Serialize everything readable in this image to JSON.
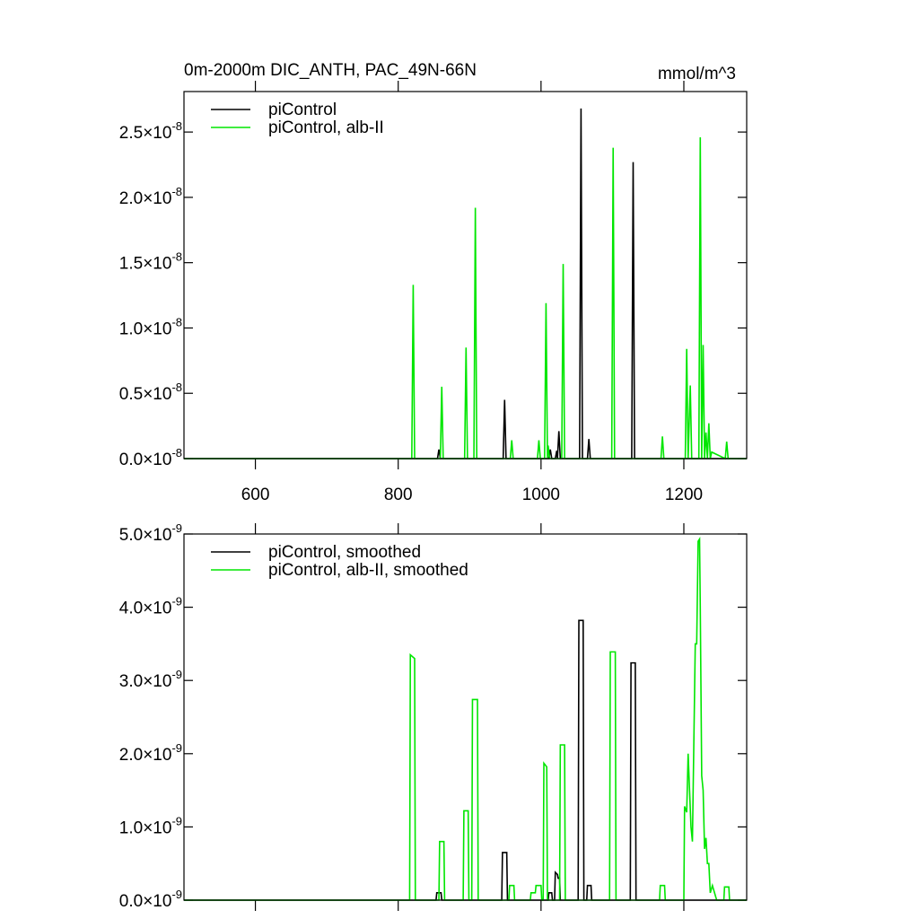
{
  "chart_data": [
    {
      "type": "line",
      "title": "0m-2000m DIC_ANTH, PAC_49N-66N",
      "units": "mmol/m^3",
      "xlim": [
        500,
        1288
      ],
      "xticks": [
        600,
        800,
        1000,
        1200
      ],
      "ylim": [
        0,
        2.81e-08
      ],
      "yticks": [
        {
          "value": 0,
          "label": "0.0×10"
        },
        {
          "value": 5e-09,
          "label": "0.5×10"
        },
        {
          "value": 1e-08,
          "label": "1.0×10"
        },
        {
          "value": 1.5e-08,
          "label": "1.5×10"
        },
        {
          "value": 2e-08,
          "label": "2.0×10"
        },
        {
          "value": 2.5e-08,
          "label": "2.5×10"
        }
      ],
      "ytick_exponent": "-8",
      "legend": "upper left",
      "series": [
        {
          "name": "piControl",
          "color": "#000000",
          "x": [
            500,
            855,
            857,
            859,
            947,
            949,
            951,
            1011,
            1013,
            1015,
            1020,
            1022,
            1023,
            1025,
            1027,
            1054,
            1056,
            1058,
            1065,
            1067,
            1069,
            1127,
            1129,
            1131,
            1288
          ],
          "values": [
            0,
            0,
            7e-10,
            0,
            0,
            4.5e-09,
            0,
            0,
            7e-10,
            0,
            0,
            6e-10,
            0,
            2.1e-09,
            0,
            0,
            2.68e-08,
            0,
            0,
            1.5e-09,
            0,
            0,
            2.27e-08,
            0,
            0
          ]
        },
        {
          "name": "piControl, alb-II",
          "color": "#00e600",
          "x": [
            500,
            819,
            821,
            823,
            859,
            861,
            863,
            893,
            895,
            897,
            906,
            908,
            910,
            957,
            959,
            961,
            995,
            997,
            999,
            1005,
            1007,
            1009,
            1010,
            1012,
            1029,
            1031,
            1033,
            1099,
            1101,
            1103,
            1168,
            1170,
            1172,
            1202,
            1204,
            1206,
            1209,
            1211,
            1221,
            1223,
            1225,
            1227,
            1229,
            1231,
            1233,
            1235,
            1237,
            1239,
            1258,
            1260,
            1262,
            1288
          ],
          "values": [
            0,
            0,
            1.33e-08,
            0,
            0,
            5.5e-09,
            0,
            0,
            8.5e-09,
            0,
            0,
            1.92e-08,
            0,
            0,
            1.4e-09,
            0,
            0,
            1.4e-09,
            0,
            0,
            1.19e-08,
            0,
            1e-09,
            0,
            0,
            1.49e-08,
            0,
            0,
            2.38e-08,
            0,
            0,
            1.7e-09,
            0,
            0,
            8.4e-09,
            0,
            5.6e-09,
            0,
            0,
            2.46e-08,
            0,
            8.7e-09,
            0,
            2e-09,
            0,
            2.7e-09,
            0,
            5e-10,
            0,
            1.3e-09,
            0,
            0
          ]
        }
      ]
    },
    {
      "type": "line",
      "xlim": [
        500,
        1288
      ],
      "xticks": [
        600,
        800,
        1000,
        1200
      ],
      "ylim": [
        0,
        5e-09
      ],
      "yticks": [
        {
          "value": 0,
          "label": "0.0×10"
        },
        {
          "value": 1e-09,
          "label": "1.0×10"
        },
        {
          "value": 2e-09,
          "label": "2.0×10"
        },
        {
          "value": 3e-09,
          "label": "3.0×10"
        },
        {
          "value": 4e-09,
          "label": "4.0×10"
        },
        {
          "value": 5e-09,
          "label": "5.0×10"
        }
      ],
      "ytick_exponent": "-9",
      "legend": "upper left",
      "series": [
        {
          "name": "piControl, smoothed",
          "color": "#000000",
          "x": [
            500,
            853,
            854,
            860,
            861,
            945,
            946,
            952,
            953,
            1010,
            1011,
            1015,
            1016,
            1019,
            1020,
            1023,
            1024,
            1026,
            1027,
            1052,
            1053,
            1059,
            1060,
            1064,
            1065,
            1070,
            1071,
            1125,
            1126,
            1132,
            1133,
            1288
          ],
          "values": [
            0,
            0,
            1e-10,
            1e-10,
            0,
            0,
            6.5e-10,
            6.5e-10,
            0,
            0,
            1e-10,
            1e-10,
            0,
            0,
            3.8e-10,
            3.5e-10,
            3e-10,
            3e-10,
            0,
            0,
            3.82e-09,
            3.82e-09,
            0,
            0,
            2e-10,
            2e-10,
            0,
            0,
            3.24e-09,
            3.24e-09,
            0,
            0
          ]
        },
        {
          "name": "piControl, alb-II, smoothed",
          "color": "#00e600",
          "x": [
            500,
            816,
            817,
            823,
            824,
            857,
            858,
            864,
            865,
            891,
            892,
            898,
            899,
            903,
            904,
            911,
            912,
            955,
            956,
            962,
            963,
            985,
            986,
            992,
            993,
            1000,
            1001,
            1003,
            1004,
            1008,
            1009,
            1026,
            1027,
            1033,
            1034,
            1096,
            1097,
            1104,
            1105,
            1166,
            1167,
            1173,
            1174,
            1200,
            1201,
            1204,
            1206,
            1208,
            1210,
            1212,
            1216,
            1218,
            1220,
            1222,
            1223,
            1225,
            1227,
            1229,
            1231,
            1233,
            1235,
            1237,
            1240,
            1243,
            1246,
            1250,
            1256,
            1257,
            1263,
            1264,
            1288
          ],
          "values": [
            0,
            0,
            3.35e-09,
            3.3e-09,
            0,
            0,
            8e-10,
            8e-10,
            0,
            0,
            1.22e-09,
            1.22e-09,
            0,
            0,
            2.74e-09,
            2.74e-09,
            0,
            0,
            2e-10,
            2e-10,
            0,
            0,
            1e-10,
            1e-10,
            2e-10,
            2e-10,
            0,
            0,
            1.87e-09,
            1.82e-09,
            0,
            0,
            2.12e-09,
            2.12e-09,
            0,
            0,
            3.39e-09,
            3.39e-09,
            0,
            0,
            2e-10,
            2e-10,
            0,
            0,
            1.28e-09,
            1.2e-09,
            2e-09,
            1.5e-09,
            1e-09,
            8e-10,
            3.5e-09,
            3.5e-09,
            4.9e-09,
            4.93e-09,
            4e-09,
            1.7e-09,
            1.5e-09,
            7e-10,
            8.5e-10,
            5e-10,
            5e-10,
            1e-10,
            2e-10,
            1e-10,
            0,
            0,
            0,
            1.8e-10,
            1.8e-10,
            0,
            0
          ]
        }
      ]
    }
  ]
}
